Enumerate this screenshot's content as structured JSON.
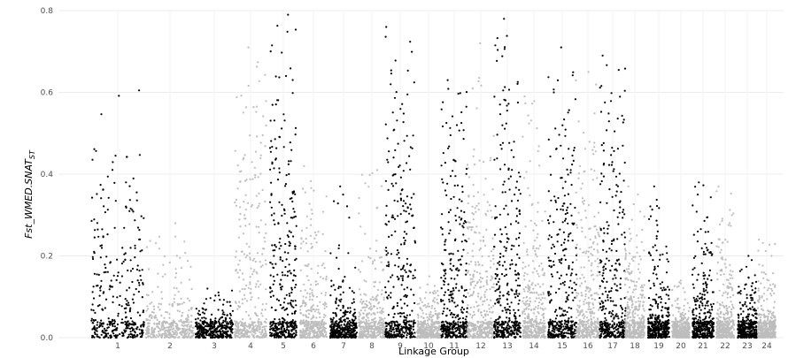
{
  "chart_data": {
    "type": "scatter",
    "title": "",
    "xlabel": "Linkage Group",
    "ylabel_main": "Fst_WMED.SNAT",
    "ylabel_sub": "ST",
    "ylim": [
      0,
      0.8
    ],
    "yticks": [
      "0.0",
      "0.2",
      "0.4",
      "0.6",
      "0.8"
    ],
    "grid": true,
    "legend": "none",
    "colors": {
      "odd": "#000000",
      "even": "#bdbdbd",
      "grid": "#ececec"
    },
    "categories": [
      "1",
      "2",
      "3",
      "4",
      "5",
      "6",
      "7",
      "8",
      "9",
      "10",
      "11",
      "12",
      "13",
      "14",
      "15",
      "16",
      "17",
      "18",
      "19",
      "20",
      "21",
      "22",
      "23",
      "24"
    ],
    "series": [
      {
        "values": [
          0.38,
          0.61,
          0.52,
          0.45,
          0.33,
          0.39,
          0.22,
          0.18
        ]
      },
      {
        "values": [
          0.28,
          0.25,
          0.18,
          0.12,
          0.1,
          0.09,
          0.08,
          0.06
        ]
      },
      {
        "values": [
          0.12,
          0.1,
          0.07,
          0.06,
          0.05,
          0.04,
          0.03,
          0.03
        ]
      },
      {
        "values": [
          0.71,
          0.66,
          0.58,
          0.5,
          0.45,
          0.4,
          0.32,
          0.25
        ]
      },
      {
        "values": [
          0.79,
          0.72,
          0.64,
          0.58,
          0.5,
          0.44,
          0.37,
          0.3
        ]
      },
      {
        "values": [
          0.42,
          0.35,
          0.28,
          0.22,
          0.18,
          0.12,
          0.08,
          0.05
        ]
      },
      {
        "values": [
          0.37,
          0.13,
          0.1,
          0.08,
          0.06,
          0.05,
          0.04,
          0.03
        ]
      },
      {
        "values": [
          0.41,
          0.31,
          0.24,
          0.18,
          0.13,
          0.1,
          0.08,
          0.05
        ]
      },
      {
        "values": [
          0.76,
          0.7,
          0.62,
          0.55,
          0.48,
          0.42,
          0.36,
          0.3
        ]
      },
      {
        "values": [
          0.15,
          0.12,
          0.1,
          0.08,
          0.06,
          0.05,
          0.04,
          0.03
        ]
      },
      {
        "values": [
          0.63,
          0.58,
          0.52,
          0.46,
          0.4,
          0.34,
          0.28,
          0.22
        ]
      },
      {
        "values": [
          0.72,
          0.5,
          0.42,
          0.38,
          0.33,
          0.28,
          0.22,
          0.18
        ]
      },
      {
        "values": [
          0.78,
          0.74,
          0.66,
          0.58,
          0.5,
          0.44,
          0.36,
          0.3
        ]
      },
      {
        "values": [
          0.59,
          0.45,
          0.36,
          0.28,
          0.22,
          0.17,
          0.12,
          0.08
        ]
      },
      {
        "values": [
          0.71,
          0.65,
          0.58,
          0.5,
          0.44,
          0.38,
          0.32,
          0.26
        ]
      },
      {
        "values": [
          0.65,
          0.5,
          0.42,
          0.34,
          0.28,
          0.22,
          0.16,
          0.12
        ]
      },
      {
        "values": [
          0.69,
          0.62,
          0.55,
          0.48,
          0.4,
          0.34,
          0.28,
          0.22
        ]
      },
      {
        "values": [
          0.37,
          0.3,
          0.25,
          0.21,
          0.18,
          0.15,
          0.12,
          0.1
        ]
      },
      {
        "values": [
          0.37,
          0.3,
          0.22,
          0.16,
          0.12,
          0.08,
          0.05,
          0.03
        ]
      },
      {
        "values": [
          0.14,
          0.1,
          0.08,
          0.06,
          0.05,
          0.04,
          0.03,
          0.02
        ]
      },
      {
        "values": [
          0.38,
          0.33,
          0.27,
          0.22,
          0.18,
          0.12,
          0.08,
          0.05
        ]
      },
      {
        "values": [
          0.37,
          0.3,
          0.24,
          0.18,
          0.13,
          0.09,
          0.06,
          0.04
        ]
      },
      {
        "values": [
          0.2,
          0.14,
          0.1,
          0.08,
          0.06,
          0.05,
          0.04,
          0.03
        ]
      },
      {
        "values": [
          0.24,
          0.18,
          0.14,
          0.1,
          0.08,
          0.06,
          0.04,
          0.03
        ]
      }
    ]
  }
}
